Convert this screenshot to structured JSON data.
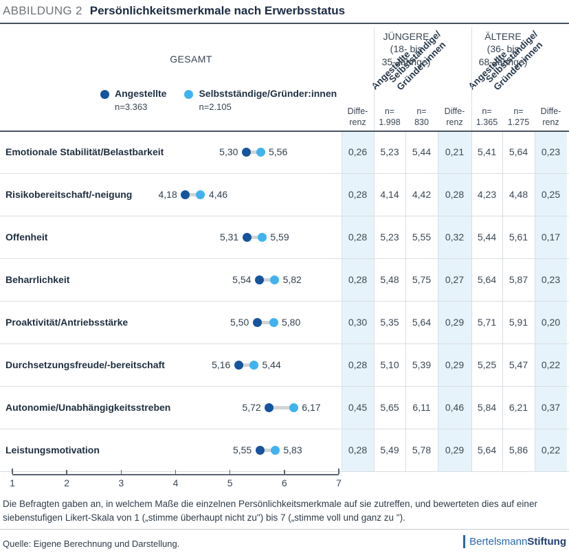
{
  "figure": {
    "kicker": "ABBILDUNG 2",
    "title": "Persönlichkeitsmerkmale nach Erwerbsstatus"
  },
  "legend": {
    "gesamt": "GESAMT",
    "items": [
      {
        "label": "Angestellte",
        "n": "n=3.363",
        "color": "#15549e"
      },
      {
        "label": "Selbstständige/Gründer:innen",
        "n": "n=2.105",
        "color": "#3fb3f0"
      }
    ]
  },
  "table_header": {
    "differenz": "Diffe-\nrenz",
    "juengere_title": "JÜNGERE\n(18- bis\n35-Jährige)",
    "aeltere_title": "ÄLTERE\n(36- bis\n68-Jährige)",
    "rotated_angestellte": "Angestellte",
    "rotated_selbststaendige": "Selbstständige/\nGründer:innen",
    "n_labels": [
      "n=\n1.998",
      "n=\n830",
      "n=\n1.365",
      "n=\n1.275"
    ]
  },
  "chart_data": {
    "type": "scatter",
    "subtype": "dot-plot-with-table",
    "title": "Persönlichkeitsmerkmale nach Erwerbsstatus",
    "xlim": [
      1,
      7
    ],
    "x_ticks": [
      1,
      2,
      3,
      4,
      5,
      6,
      7
    ],
    "series": [
      "Angestellte",
      "Selbstständige/Gründer:innen"
    ],
    "rows": [
      {
        "label": "Emotionale Stabilität/Belastbarkeit",
        "gesamt": {
          "angestellte": 5.3,
          "selbststaendige": 5.56,
          "differenz": 0.26
        },
        "juengere": {
          "angestellte": 5.23,
          "selbststaendige": 5.44,
          "differenz": 0.21
        },
        "aeltere": {
          "angestellte": 5.41,
          "selbststaendige": 5.64,
          "differenz": 0.23
        }
      },
      {
        "label": "Risikobereitschaft/-neigung",
        "gesamt": {
          "angestellte": 4.18,
          "selbststaendige": 4.46,
          "differenz": 0.28
        },
        "juengere": {
          "angestellte": 4.14,
          "selbststaendige": 4.42,
          "differenz": 0.28
        },
        "aeltere": {
          "angestellte": 4.23,
          "selbststaendige": 4.48,
          "differenz": 0.25
        }
      },
      {
        "label": "Offenheit",
        "gesamt": {
          "angestellte": 5.31,
          "selbststaendige": 5.59,
          "differenz": 0.28
        },
        "juengere": {
          "angestellte": 5.23,
          "selbststaendige": 5.55,
          "differenz": 0.32
        },
        "aeltere": {
          "angestellte": 5.44,
          "selbststaendige": 5.61,
          "differenz": 0.17
        }
      },
      {
        "label": "Beharrlichkeit",
        "gesamt": {
          "angestellte": 5.54,
          "selbststaendige": 5.82,
          "differenz": 0.28
        },
        "juengere": {
          "angestellte": 5.48,
          "selbststaendige": 5.75,
          "differenz": 0.27
        },
        "aeltere": {
          "angestellte": 5.64,
          "selbststaendige": 5.87,
          "differenz": 0.23
        }
      },
      {
        "label": "Proaktivität/Antriebsstärke",
        "gesamt": {
          "angestellte": 5.5,
          "selbststaendige": 5.8,
          "differenz": 0.3
        },
        "juengere": {
          "angestellte": 5.35,
          "selbststaendige": 5.64,
          "differenz": 0.29
        },
        "aeltere": {
          "angestellte": 5.71,
          "selbststaendige": 5.91,
          "differenz": 0.2
        }
      },
      {
        "label": "Durchsetzungsfreude/-bereitschaft",
        "gesamt": {
          "angestellte": 5.16,
          "selbststaendige": 5.44,
          "differenz": 0.28
        },
        "juengere": {
          "angestellte": 5.1,
          "selbststaendige": 5.39,
          "differenz": 0.29
        },
        "aeltere": {
          "angestellte": 5.25,
          "selbststaendige": 5.47,
          "differenz": 0.22
        }
      },
      {
        "label": "Autonomie/Unabhängigkeitsstreben",
        "gesamt": {
          "angestellte": 5.72,
          "selbststaendige": 6.17,
          "differenz": 0.45
        },
        "juengere": {
          "angestellte": 5.65,
          "selbststaendige": 6.11,
          "differenz": 0.46
        },
        "aeltere": {
          "angestellte": 5.84,
          "selbststaendige": 6.21,
          "differenz": 0.37
        }
      },
      {
        "label": "Leistungsmotivation",
        "gesamt": {
          "angestellte": 5.55,
          "selbststaendige": 5.83,
          "differenz": 0.28
        },
        "juengere": {
          "angestellte": 5.49,
          "selbststaendige": 5.78,
          "differenz": 0.29
        },
        "aeltere": {
          "angestellte": 5.64,
          "selbststaendige": 5.86,
          "differenz": 0.22
        }
      }
    ]
  },
  "note": "Die Befragten gaben an, in welchem Maße die einzelnen Persönlichkeitsmerkmale auf sie zutreffen, und bewerteten dies auf einer siebenstufigen Likert-Skala von 1 („stimme überhaupt nicht zu\") bis 7 („stimme voll und ganz zu \").",
  "source": "Quelle: Eigene Berechnung und Darstellung.",
  "logo": {
    "part1": "Bertelsmann",
    "part2": "Stiftung"
  }
}
